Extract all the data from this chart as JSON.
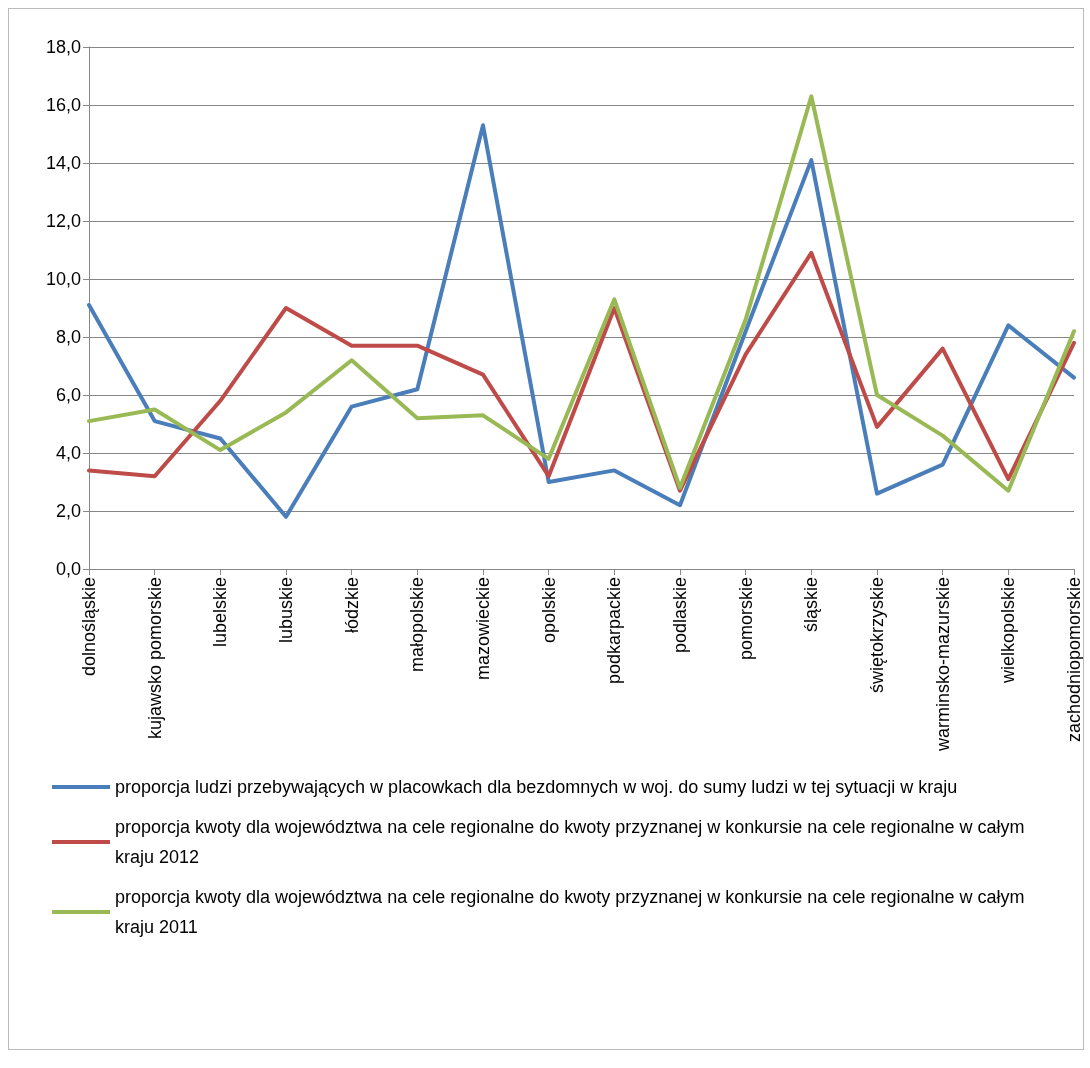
{
  "chart_data": {
    "type": "line",
    "categories": [
      "dolnośląskie",
      "kujawsko pomorskie",
      "lubelskie",
      "lubuskie",
      "łódzkie",
      "małopolskie",
      "mazowieckie",
      "opolskie",
      "podkarpackie",
      "podlaskie",
      "pomorskie",
      "śląskie",
      "świętokrzyskie",
      "warminsko-mazurskie",
      "wielkopolskie",
      "zachodniopomorskie"
    ],
    "series": [
      {
        "name": "proporcja ludzi przebywających w placowkach dla bezdomnych w woj. do sumy ludzi w tej sytuacji w kraju",
        "color": "#4a7ebb",
        "values": [
          9.1,
          5.1,
          4.5,
          1.8,
          5.6,
          6.2,
          15.3,
          3.0,
          3.4,
          2.2,
          8.2,
          14.1,
          2.6,
          3.6,
          8.4,
          6.6
        ]
      },
      {
        "name": "proporcja kwoty dla województwa na cele regionalne do kwoty przyznanej w konkursie na cele regionalne w całym kraju 2012",
        "color": "#be4b48",
        "values": [
          3.4,
          3.2,
          5.8,
          9.0,
          7.7,
          7.7,
          6.7,
          3.2,
          9.0,
          2.7,
          7.4,
          10.9,
          4.9,
          7.6,
          3.1,
          7.8
        ]
      },
      {
        "name": "proporcja kwoty dla województwa na cele regionalne do kwoty przyznanej w konkursie na cele regionalne w całym kraju 2011",
        "color": "#98b954",
        "values": [
          5.1,
          5.5,
          4.1,
          5.4,
          7.2,
          5.2,
          5.3,
          3.8,
          9.3,
          2.8,
          8.6,
          16.3,
          6.0,
          4.6,
          2.7,
          8.2
        ]
      }
    ],
    "ylim": [
      0,
      18
    ],
    "yticks": [
      {
        "value": 0,
        "label": "0,0"
      },
      {
        "value": 2,
        "label": "2,0"
      },
      {
        "value": 4,
        "label": "4,0"
      },
      {
        "value": 6,
        "label": "6,0"
      },
      {
        "value": 8,
        "label": "8,0"
      },
      {
        "value": 10,
        "label": "10,0"
      },
      {
        "value": 12,
        "label": "12,0"
      },
      {
        "value": 14,
        "label": "14,0"
      },
      {
        "value": 16,
        "label": "16,0"
      },
      {
        "value": 18,
        "label": "18,0"
      }
    ],
    "grid": "y",
    "legend": "bottom",
    "marker": "none",
    "line_style": "solid"
  }
}
